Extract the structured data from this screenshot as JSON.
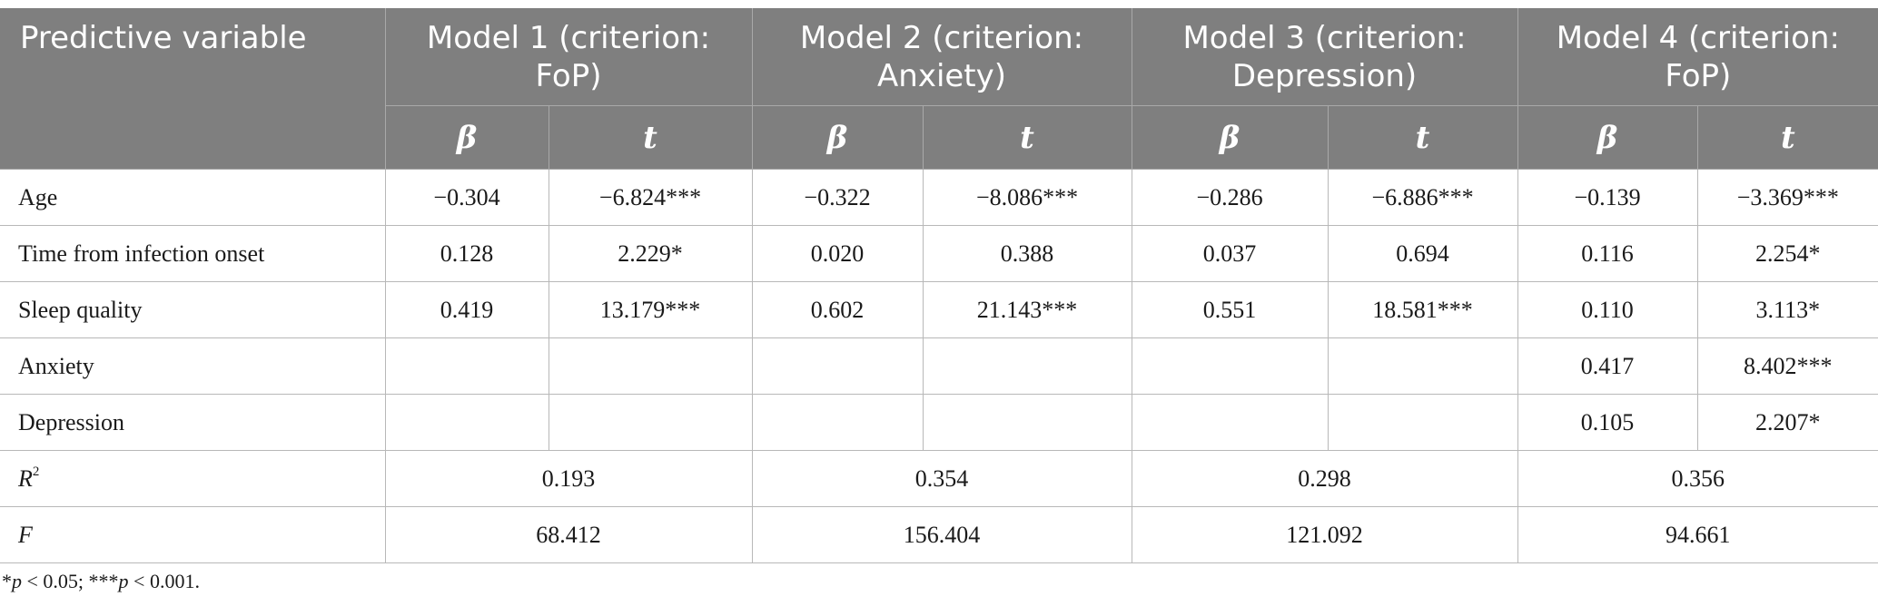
{
  "table": {
    "header": {
      "first_col": "Predictive variable",
      "models": [
        "Model 1 (criterion: FoP)",
        "Model 2 (criterion: Anxiety)",
        "Model 3 (criterion: Depression)",
        "Model 4 (criterion: FoP)"
      ],
      "beta_label": "β",
      "t_label": "t"
    },
    "rows": [
      {
        "label": "Age",
        "cells": [
          "−0.304",
          "−6.824***",
          "−0.322",
          "−8.086***",
          "−0.286",
          "−6.886***",
          "−0.139",
          "−3.369***"
        ]
      },
      {
        "label": "Time from infection onset",
        "cells": [
          "0.128",
          "2.229*",
          "0.020",
          "0.388",
          "0.037",
          "0.694",
          "0.116",
          "2.254*"
        ]
      },
      {
        "label": "Sleep quality",
        "cells": [
          "0.419",
          "13.179***",
          "0.602",
          "21.143***",
          "0.551",
          "18.581***",
          "0.110",
          "3.113*"
        ]
      },
      {
        "label": "Anxiety",
        "cells": [
          "",
          "",
          "",
          "",
          "",
          "",
          "0.417",
          "8.402***"
        ]
      },
      {
        "label": "Depression",
        "cells": [
          "",
          "",
          "",
          "",
          "",
          "",
          "0.105",
          "2.207*"
        ]
      }
    ],
    "r2": {
      "label_base": "R",
      "label_sup": "2",
      "values": [
        "0.193",
        "0.354",
        "0.298",
        "0.356"
      ]
    },
    "f": {
      "label": "F",
      "values": [
        "68.412",
        "156.404",
        "121.092",
        "94.661"
      ]
    }
  },
  "note": {
    "part1": "*",
    "p1": "p",
    "part2": " < 0.05; ***",
    "p2": "p",
    "part3": " < 0.001."
  }
}
